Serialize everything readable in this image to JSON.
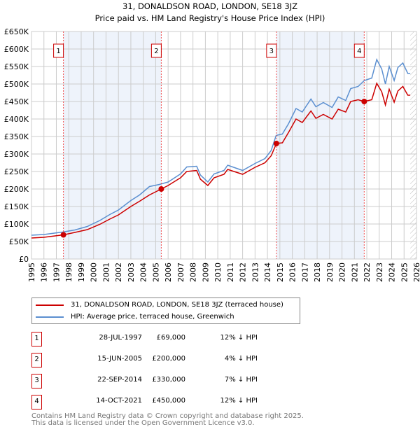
{
  "chart_data": {
    "type": "line",
    "title": "31, DONALDSON ROAD, LONDON, SE18 3JZ",
    "subtitle": "Price paid vs. HM Land Registry's House Price Index (HPI)",
    "xlim": [
      1995,
      2026
    ],
    "ylim": [
      0,
      650000
    ],
    "grid": true,
    "y_ticks": [
      0,
      50000,
      100000,
      150000,
      200000,
      250000,
      300000,
      350000,
      400000,
      450000,
      500000,
      550000,
      600000,
      650000
    ],
    "y_tick_labels": [
      "£0",
      "£50K",
      "£100K",
      "£150K",
      "£200K",
      "£250K",
      "£300K",
      "£350K",
      "£400K",
      "£450K",
      "£500K",
      "£550K",
      "£600K",
      "£650K"
    ],
    "x_ticks": [
      1995,
      1996,
      1997,
      1998,
      1999,
      2000,
      2001,
      2002,
      2003,
      2004,
      2005,
      2006,
      2007,
      2008,
      2009,
      2010,
      2011,
      2012,
      2013,
      2014,
      2015,
      2016,
      2017,
      2018,
      2019,
      2020,
      2021,
      2022,
      2023,
      2024,
      2025,
      2026
    ],
    "x_tick_labels": [
      "1995",
      "1996",
      "1997",
      "1998",
      "1999",
      "2000",
      "2001",
      "2002",
      "2003",
      "2004",
      "2005",
      "2006",
      "2007",
      "2008",
      "2009",
      "2010",
      "2011",
      "2012",
      "2013",
      "2014",
      "2015",
      "2016",
      "2017",
      "2018",
      "2019",
      "2020",
      "2021",
      "2022",
      "2023",
      "2024",
      "2025",
      "2026"
    ],
    "hatched_from": 2025.5,
    "colors": {
      "property": "#cc0000",
      "hpi": "#5b8fd0",
      "shade": "#eef3fb",
      "grid": "#cccccc"
    },
    "series": [
      {
        "name": "31, DONALDSON ROAD, LONDON, SE18 3JZ (terraced house)",
        "color": "#cc0000",
        "x": [
          1995,
          1996,
          1997.57,
          1998.5,
          1999.5,
          2000.5,
          2001.3,
          2002,
          2003,
          2003.7,
          2004.5,
          2005.45,
          2006,
          2007,
          2007.5,
          2008.3,
          2008.6,
          2009.2,
          2009.7,
          2010.5,
          2010.8,
          2012,
          2013,
          2013.8,
          2014.3,
          2014.72,
          2015.2,
          2015.7,
          2016.3,
          2016.8,
          2017.5,
          2017.9,
          2018.5,
          2019.2,
          2019.7,
          2020.3,
          2020.7,
          2021.3,
          2021.79,
          2022.4,
          2022.8,
          2023.2,
          2023.5,
          2023.8,
          2024.2,
          2024.5,
          2024.9,
          2025.3,
          2025.5
        ],
        "y": [
          60000,
          62000,
          69000,
          76000,
          84000,
          99000,
          114000,
          126000,
          150000,
          165000,
          183000,
          200000,
          210000,
          232000,
          250000,
          253000,
          228000,
          210000,
          232000,
          242000,
          256000,
          242000,
          262000,
          275000,
          295000,
          330000,
          332000,
          362000,
          400000,
          390000,
          423000,
          402000,
          413000,
          400000,
          428000,
          420000,
          450000,
          455000,
          450000,
          455000,
          502000,
          478000,
          440000,
          485000,
          448000,
          480000,
          493000,
          468000,
          468000
        ]
      },
      {
        "name": "HPI: Average price, terraced house, Greenwich",
        "color": "#5b8fd0",
        "x": [
          1995,
          1996,
          1997.5,
          1998.5,
          1999.5,
          2000.5,
          2001.3,
          2002,
          2003,
          2003.7,
          2004.5,
          2005.3,
          2006,
          2007,
          2007.5,
          2008.3,
          2008.6,
          2009.2,
          2009.7,
          2010.5,
          2010.8,
          2012,
          2013,
          2013.8,
          2014.3,
          2014.7,
          2015.2,
          2015.7,
          2016.3,
          2016.8,
          2017.5,
          2017.9,
          2018.5,
          2019.2,
          2019.7,
          2020.3,
          2020.7,
          2021.3,
          2021.8,
          2022.4,
          2022.8,
          2023.2,
          2023.5,
          2023.8,
          2024.2,
          2024.5,
          2024.9,
          2025.3,
          2025.5
        ],
        "y": [
          68000,
          70000,
          77000,
          83000,
          93000,
          110000,
          127000,
          140000,
          167000,
          183000,
          207000,
          213000,
          220000,
          243000,
          263000,
          265000,
          240000,
          220000,
          243000,
          253000,
          268000,
          253000,
          273000,
          287000,
          310000,
          353000,
          357000,
          387000,
          430000,
          420000,
          457000,
          435000,
          447000,
          433000,
          463000,
          453000,
          487000,
          493000,
          510000,
          517000,
          570000,
          543000,
          500000,
          550000,
          510000,
          547000,
          560000,
          530000,
          530000
        ]
      }
    ],
    "sales": [
      {
        "label": "1",
        "x": 1997.57,
        "price": 69000,
        "date": "28-JUL-1997",
        "price_text": "£69,000",
        "hpi_text": "12% ↓ HPI"
      },
      {
        "label": "2",
        "x": 2005.45,
        "price": 200000,
        "date": "15-JUN-2005",
        "price_text": "£200,000",
        "hpi_text": "4% ↓ HPI"
      },
      {
        "label": "3",
        "x": 2014.72,
        "price": 330000,
        "date": "22-SEP-2014",
        "price_text": "£330,000",
        "hpi_text": "7% ↓ HPI"
      },
      {
        "label": "4",
        "x": 2021.79,
        "price": 450000,
        "date": "14-OCT-2021",
        "price_text": "£450,000",
        "hpi_text": "12% ↓ HPI"
      }
    ],
    "legend_position": "below"
  },
  "legend": {
    "property": "31, DONALDSON ROAD, LONDON, SE18 3JZ (terraced house)",
    "hpi": "HPI: Average price, terraced house, Greenwich"
  },
  "footer": {
    "line1": "Contains HM Land Registry data © Crown copyright and database right 2025.",
    "line2": "This data is licensed under the Open Government Licence v3.0."
  }
}
